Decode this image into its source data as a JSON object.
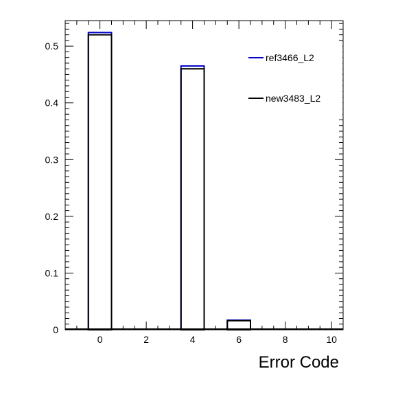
{
  "chart_data": {
    "type": "bar",
    "xlabel": "Error Code",
    "ylabel": "",
    "xlim": [
      -1.5,
      10.5
    ],
    "ylim": [
      0,
      0.545
    ],
    "xticks": [
      0,
      2,
      4,
      6,
      8,
      10
    ],
    "xtick_labels": [
      "0",
      "2",
      "4",
      "6",
      "8",
      "10"
    ],
    "yticks": [
      0,
      0.1,
      0.2,
      0.3,
      0.4,
      0.5
    ],
    "ytick_labels": [
      "0",
      "0.1",
      "0.2",
      "0.3",
      "0.4",
      "0.5"
    ],
    "bin_width": 1,
    "bin_centers": [
      -1,
      0,
      1,
      2,
      3,
      4,
      5,
      6,
      7,
      8,
      9,
      10
    ],
    "series": [
      {
        "name": "ref3466_L2",
        "color": "#0000cc",
        "values": [
          0,
          0.524,
          0,
          0,
          0,
          0.465,
          0,
          0.017,
          0,
          0,
          0,
          0
        ]
      },
      {
        "name": "new3483_L2",
        "color": "#000000",
        "values": [
          0,
          0.52,
          0,
          0,
          0,
          0.46,
          0,
          0.016,
          0,
          0,
          0,
          0
        ]
      }
    ],
    "legend_position": "top-right",
    "grid": false
  }
}
